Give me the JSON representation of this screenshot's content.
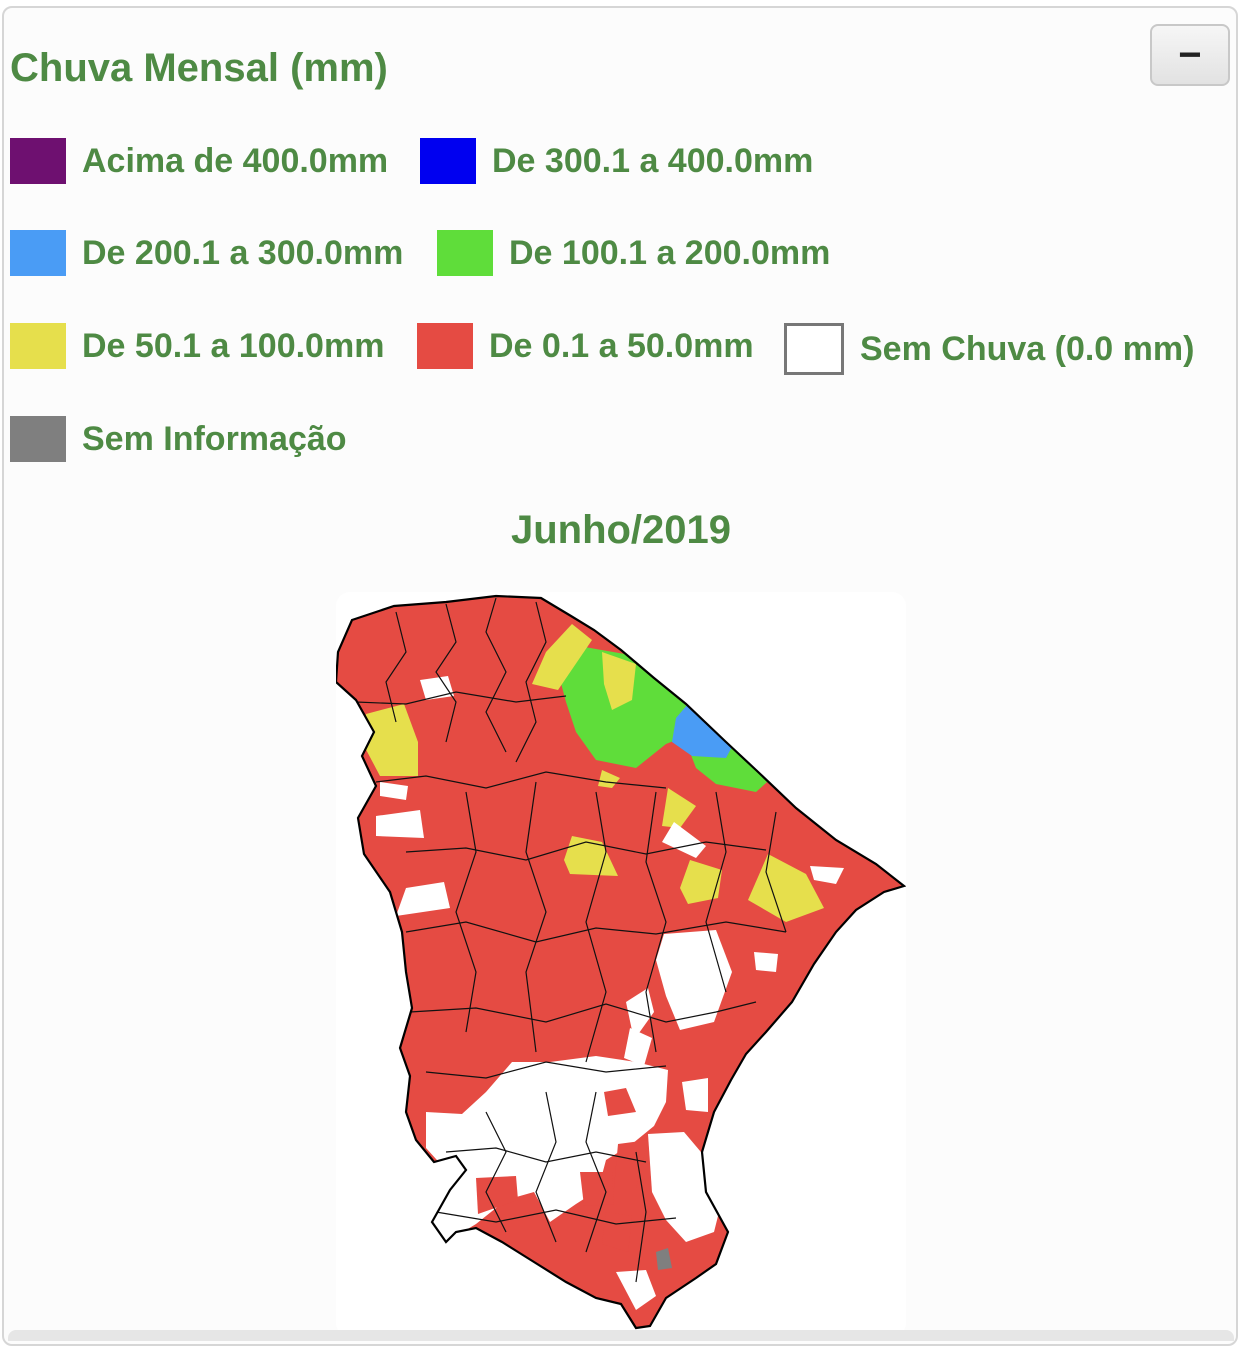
{
  "panel": {
    "title": "Chuva Mensal (mm)",
    "collapse_label": "−"
  },
  "legend": [
    {
      "label": "Acima de 400.0mm",
      "color": "#6e1070"
    },
    {
      "label": "De 300.1 a 400.0mm",
      "color": "#0000f0"
    },
    {
      "label": "De 200.1 a 300.0mm",
      "color": "#4a9cf5"
    },
    {
      "label": "De 100.1 a 200.0mm",
      "color": "#5fdd3a"
    },
    {
      "label": "De 50.1 a 100.0mm",
      "color": "#e6df4c"
    },
    {
      "label": "De 0.1 a 50.0mm",
      "color": "#e54b43"
    },
    {
      "label": "Sem Chuva (0.0 mm)",
      "color": "#ffffff"
    },
    {
      "label": "Sem Informação",
      "color": "#7f7f7f"
    }
  ],
  "map": {
    "period": "Junho/2019",
    "region_colors": {
      "dominant": "#e54b43",
      "no_rain": "#ffffff",
      "band_50_100": "#e6df4c",
      "band_100_200": "#5fdd3a",
      "band_200_300": "#4a9cf5",
      "no_info": "#7f7f7f"
    }
  }
}
